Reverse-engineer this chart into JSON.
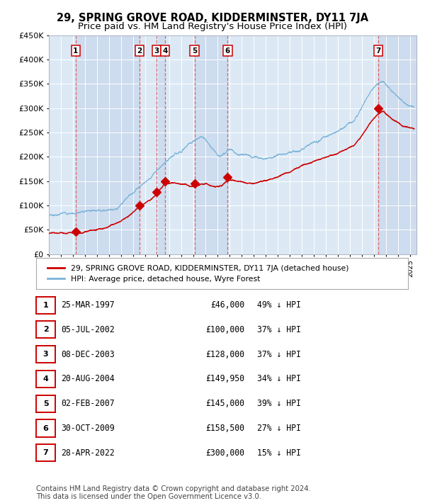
{
  "title": "29, SPRING GROVE ROAD, KIDDERMINSTER, DY11 7JA",
  "subtitle": "Price paid vs. HM Land Registry's House Price Index (HPI)",
  "title_fontsize": 10.5,
  "subtitle_fontsize": 9.5,
  "background_color": "#ffffff",
  "plot_bg_color": "#dce9f5",
  "grid_color": "#ffffff",
  "hpi_line_color": "#7ab3d9",
  "price_line_color": "#cc0000",
  "sale_marker_color": "#cc0000",
  "dashed_line_color": "#e06060",
  "ylim": [
    0,
    450000
  ],
  "yticks": [
    0,
    50000,
    100000,
    150000,
    200000,
    250000,
    300000,
    350000,
    400000,
    450000
  ],
  "xlim_start": 1995.0,
  "xlim_end": 2025.5,
  "xtick_years": [
    1995,
    1996,
    1997,
    1998,
    1999,
    2000,
    2001,
    2002,
    2003,
    2004,
    2005,
    2006,
    2007,
    2008,
    2009,
    2010,
    2011,
    2012,
    2013,
    2014,
    2015,
    2016,
    2017,
    2018,
    2019,
    2020,
    2021,
    2022,
    2023,
    2024,
    2025
  ],
  "sales": [
    {
      "id": 1,
      "date": "25-MAR-1997",
      "year": 1997.22,
      "price": 46000
    },
    {
      "id": 2,
      "date": "05-JUL-2002",
      "year": 2002.51,
      "price": 100000
    },
    {
      "id": 3,
      "date": "08-DEC-2003",
      "year": 2003.93,
      "price": 128000
    },
    {
      "id": 4,
      "date": "20-AUG-2004",
      "year": 2004.63,
      "price": 149950
    },
    {
      "id": 5,
      "date": "02-FEB-2007",
      "year": 2007.09,
      "price": 145000
    },
    {
      "id": 6,
      "date": "30-OCT-2009",
      "year": 2009.83,
      "price": 158500
    },
    {
      "id": 7,
      "date": "28-APR-2022",
      "year": 2022.32,
      "price": 300000
    }
  ],
  "legend_label_price": "29, SPRING GROVE ROAD, KIDDERMINSTER, DY11 7JA (detached house)",
  "legend_label_hpi": "HPI: Average price, detached house, Wyre Forest",
  "table_rows": [
    {
      "id": 1,
      "date": "25-MAR-1997",
      "price": "£46,000",
      "note": "49% ↓ HPI"
    },
    {
      "id": 2,
      "date": "05-JUL-2002",
      "price": "£100,000",
      "note": "37% ↓ HPI"
    },
    {
      "id": 3,
      "date": "08-DEC-2003",
      "price": "£128,000",
      "note": "37% ↓ HPI"
    },
    {
      "id": 4,
      "date": "20-AUG-2004",
      "price": "£149,950",
      "note": "34% ↓ HPI"
    },
    {
      "id": 5,
      "date": "02-FEB-2007",
      "price": "£145,000",
      "note": "39% ↓ HPI"
    },
    {
      "id": 6,
      "date": "30-OCT-2009",
      "price": "£158,500",
      "note": "27% ↓ HPI"
    },
    {
      "id": 7,
      "date": "28-APR-2022",
      "price": "£300,000",
      "note": "15% ↓ HPI"
    }
  ],
  "footnote": "Contains HM Land Registry data © Crown copyright and database right 2024.\nThis data is licensed under the Open Government Licence v3.0."
}
